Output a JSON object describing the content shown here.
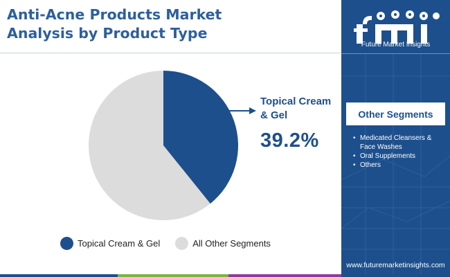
{
  "title": {
    "line1": "Anti-Acne Products Market",
    "line2": "Analysis by Product Type"
  },
  "brand": {
    "logo_text": "fmi",
    "tagline": "Future Market Insights",
    "url": "www.futuremarketinsights.com"
  },
  "other_segments": {
    "heading": "Other Segments",
    "items": [
      "Medicated Cleansers & Face Washes",
      "Oral Supplements",
      "Others"
    ]
  },
  "callout": {
    "label": "Topical Cream & Gel",
    "value": "39.2%"
  },
  "legend": [
    {
      "label": "Topical Cream & Gel",
      "color": "#1d4f8c"
    },
    {
      "label": "All Other Segments",
      "color": "#dcdcdc"
    }
  ],
  "colors": {
    "primary": "#1d4f8c",
    "title": "#2d5f9e",
    "other": "#dcdcdc",
    "bar": [
      "#1d4f8c",
      "#7cb342",
      "#8e3b9c",
      "#1d4f8c"
    ]
  },
  "chart_data": {
    "type": "pie",
    "title": "Anti-Acne Products Market Analysis by Product Type",
    "slices": [
      {
        "name": "Topical Cream & Gel",
        "value": 39.2,
        "color": "#1d4f8c"
      },
      {
        "name": "All Other Segments",
        "value": 60.8,
        "color": "#dcdcdc"
      }
    ],
    "start": "12 o'clock",
    "direction": "clockwise",
    "legend_position": "bottom"
  }
}
